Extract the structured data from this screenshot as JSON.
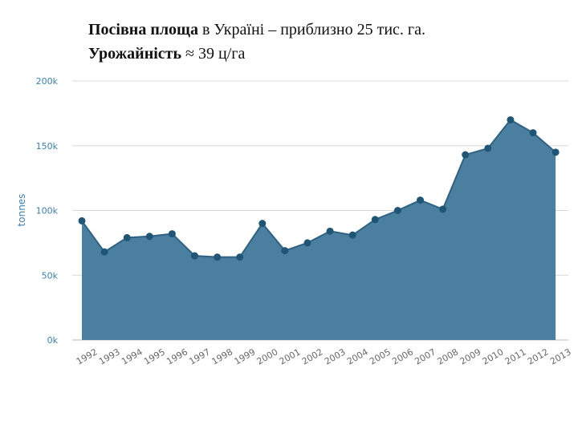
{
  "header": {
    "line1_bold": "Посівна площа",
    "line1_rest": " в Україні – приблизно 25 тис. га.",
    "line2_bold": "Урожайність",
    "line2_rest": " ≈ 39 ц/га"
  },
  "chart_data": {
    "type": "area",
    "title": "",
    "xlabel": "",
    "ylabel": "tonnes",
    "ylim": [
      0,
      200000
    ],
    "y_ticks": [
      0,
      50000,
      100000,
      150000,
      200000
    ],
    "y_tick_labels": [
      "0k",
      "50k",
      "100k",
      "150k",
      "200k"
    ],
    "grid": true,
    "categories": [
      "1992",
      "1993",
      "1994",
      "1995",
      "1996",
      "1997",
      "1998",
      "1999",
      "2000",
      "2001",
      "2002",
      "2003",
      "2004",
      "2005",
      "2006",
      "2007",
      "2008",
      "2009",
      "2010",
      "2011",
      "2012",
      "2013"
    ],
    "values": [
      92000,
      68000,
      79000,
      80000,
      82000,
      65000,
      64000,
      64000,
      90000,
      69000,
      75000,
      84000,
      81000,
      93000,
      100000,
      108000,
      101000,
      143000,
      148000,
      170000,
      160000,
      145000
    ],
    "fill_color": "#4a7fa0",
    "line_color": "#2f6282",
    "marker_color": "#1f5676"
  }
}
